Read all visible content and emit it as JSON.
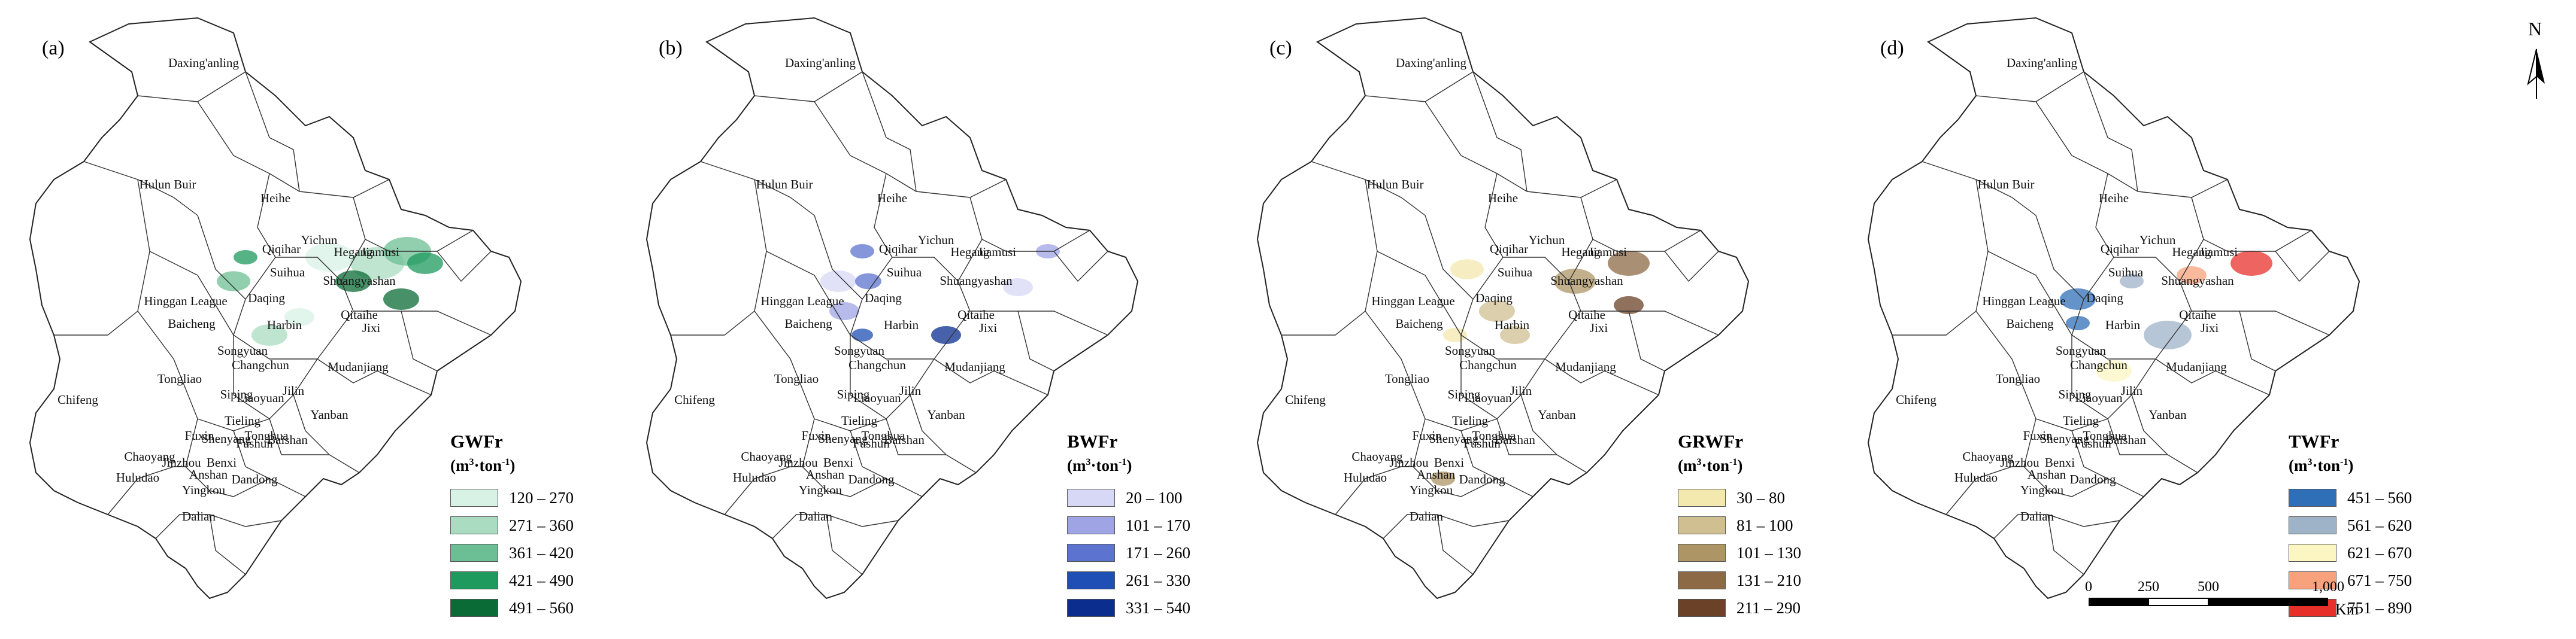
{
  "panels": [
    {
      "label": "(a)",
      "legend_title": "GWFr",
      "legend_unit_prefix": "(m",
      "legend_unit_sup": "3",
      "legend_unit_suffix": "·ton",
      "legend_unit_sup2": "-1",
      "legend_unit_close": ")",
      "classes": [
        {
          "range": "120 – 270",
          "color": "#d8f2e6"
        },
        {
          "range": "271 – 360",
          "color": "#a9dcc1"
        },
        {
          "range": "361 – 420",
          "color": "#6cbf94"
        },
        {
          "range": "421 – 490",
          "color": "#1e9a5e"
        },
        {
          "range": "491 – 560",
          "color": "#0b6b36"
        }
      ],
      "patch_color": "#2b9c5f"
    },
    {
      "label": "(b)",
      "legend_title": "BWFr",
      "legend_unit_prefix": "(m",
      "legend_unit_sup": "3",
      "legend_unit_suffix": "·ton",
      "legend_unit_sup2": "-1",
      "legend_unit_close": ")",
      "classes": [
        {
          "range": "20 – 100",
          "color": "#d7d8f5"
        },
        {
          "range": "101 – 170",
          "color": "#9ea4e4"
        },
        {
          "range": "171 – 260",
          "color": "#5c73cf"
        },
        {
          "range": "261 – 330",
          "color": "#1f4fb4"
        },
        {
          "range": "331 – 540",
          "color": "#0a2d8e"
        }
      ],
      "patch_color": "#5a6ed0"
    },
    {
      "label": "(c)",
      "legend_title": "GRWFr",
      "legend_unit_prefix": "(m",
      "legend_unit_sup": "3",
      "legend_unit_suffix": "·ton",
      "legend_unit_sup2": "-1",
      "legend_unit_close": ")",
      "classes": [
        {
          "range": "30 – 80",
          "color": "#f3e8ad"
        },
        {
          "range": "81 – 100",
          "color": "#cfbf91"
        },
        {
          "range": "101 – 130",
          "color": "#ad9566"
        },
        {
          "range": "131 – 210",
          "color": "#8c6a46"
        },
        {
          "range": "211 – 290",
          "color": "#6b4127"
        }
      ],
      "patch_color": "#b19c6c"
    },
    {
      "label": "(d)",
      "legend_title": "TWFr",
      "legend_unit_prefix": "(m",
      "legend_unit_sup": "3",
      "legend_unit_suffix": "·ton",
      "legend_unit_sup2": "-1",
      "legend_unit_close": ")",
      "classes": [
        {
          "range": "451 – 560",
          "color": "#2f6fb7"
        },
        {
          "range": "561 – 620",
          "color": "#9fb3c8"
        },
        {
          "range": "621 – 670",
          "color": "#fbf6c2"
        },
        {
          "range": "671 – 750",
          "color": "#f7a27c"
        },
        {
          "range": "751 – 890",
          "color": "#e8302b"
        }
      ],
      "patch_color": "#9fb3c8"
    }
  ],
  "city_labels": [
    "Daxing'anling",
    "Hulun Buir",
    "Heihe",
    "Qiqihar",
    "Yichun",
    "Hegang",
    "Jiamusi",
    "Suihua",
    "Shuangyashan",
    "Daqing",
    "Hinggan League",
    "Baicheng",
    "Harbin",
    "Qitaihe",
    "Jixi",
    "Songyuan",
    "Changchun",
    "Mudanjiang",
    "Tongliao",
    "Jilin",
    "Siping",
    "Liaoyuan",
    "Chifeng",
    "Yanban",
    "Tieling",
    "Fuxin",
    "Shenyang",
    "Fushun",
    "Baishan",
    "Chaoyang",
    "Jinzhou",
    "Benxi",
    "Huludao",
    "Anshan",
    "Dandong",
    "Yingkou",
    "Dalian",
    "Tonghua"
  ],
  "north_arrow": "N",
  "scale_bar": {
    "ticks": [
      "0",
      "250",
      "500",
      "1,000"
    ],
    "unit": "Km"
  }
}
